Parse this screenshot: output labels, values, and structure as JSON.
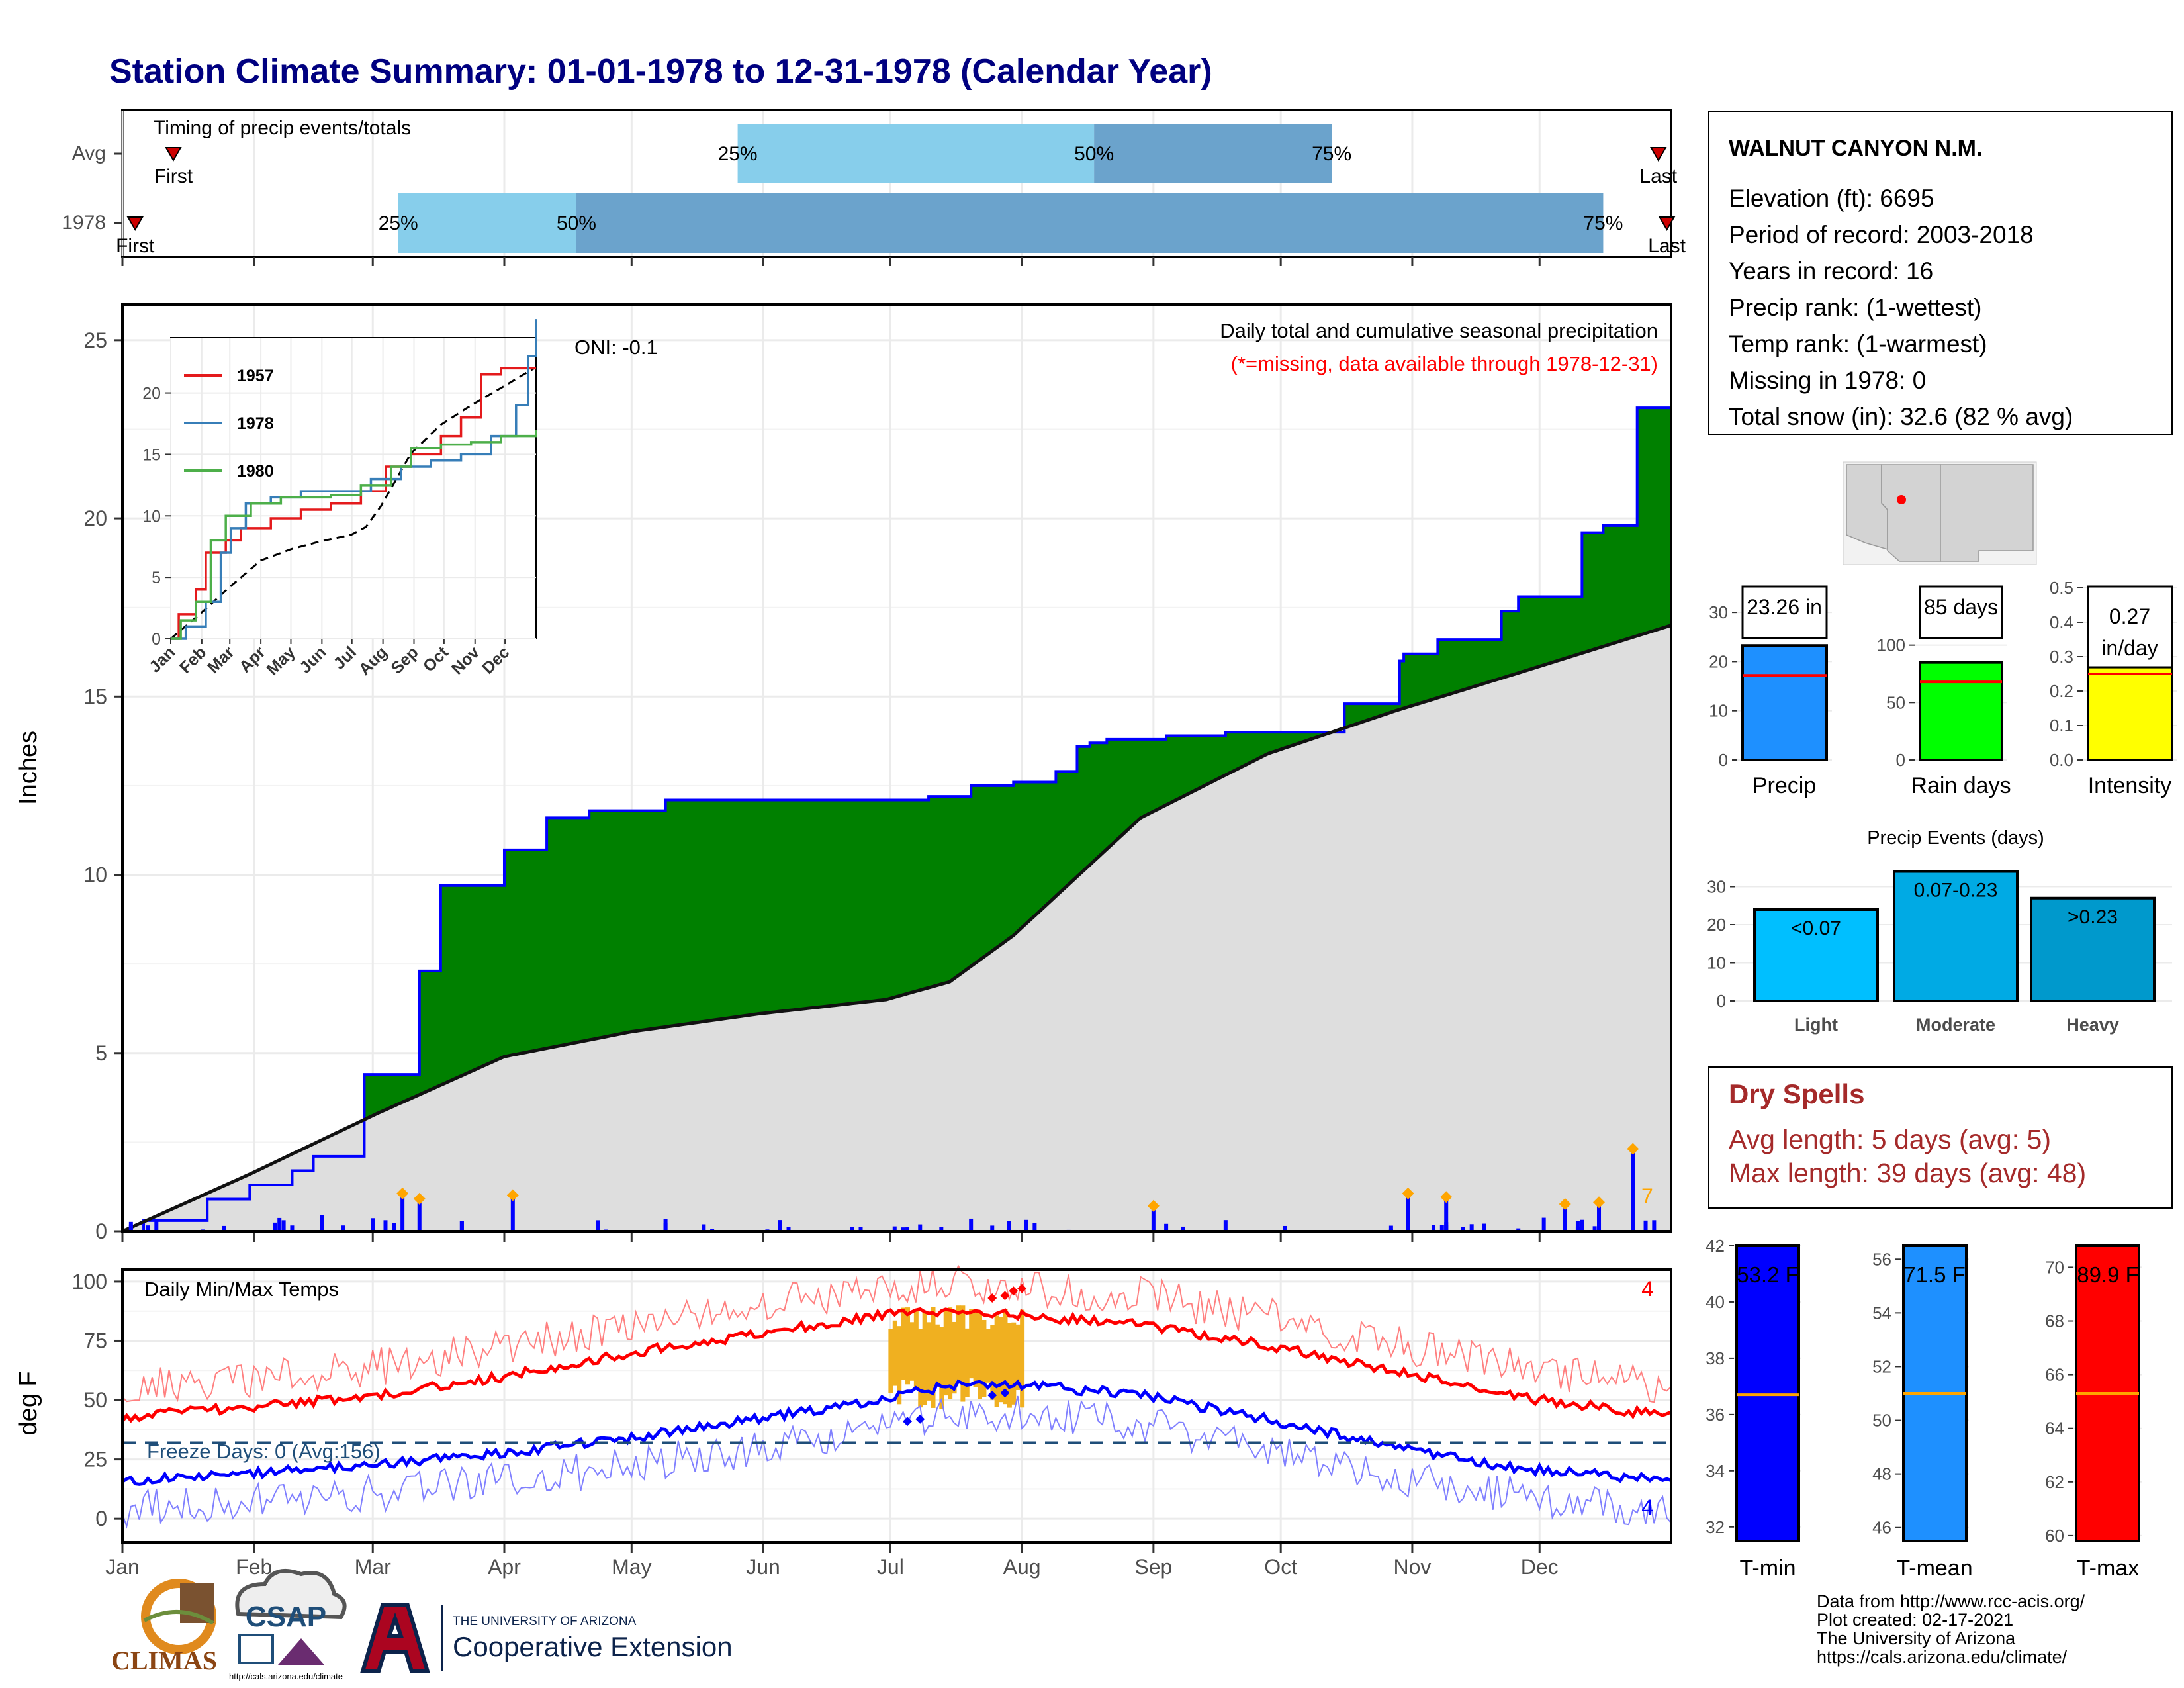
{
  "title": "Station Climate Summary: 01-01-1978 to 12-31-1978 (Calendar Year)",
  "colors": {
    "title": "#000080",
    "green_fill": "#008000",
    "gray_fill": "#DEDEDE",
    "blue_line": "#0000FF",
    "orange": "#FFA500",
    "q_light": "#87CEEB",
    "q_dark": "#6BA3CC",
    "precip_bar": "#1E90FF",
    "rain_days_bar": "#00FF00",
    "intensity_bar": "#FFFF00",
    "event_light": "#00BFFF",
    "event_moderate": "#00AAE4",
    "event_heavy": "#0099CC",
    "dry_spell": "#A52A2A",
    "tmin_bar": "#0000FF",
    "tmean_bar": "#1E90FF",
    "tmax_bar": "#FF0000",
    "warm_anomaly": "#F0B020"
  },
  "timing": {
    "title": "Timing of precip events/totals",
    "rows": [
      {
        "label": "Avg",
        "first_label": "First",
        "last_label": "Last",
        "first_doy": 12,
        "last_doy": 362,
        "q25": 145,
        "q50": 229,
        "q75": 285,
        "q25_label": "25%",
        "q50_label": "50%",
        "q75_label": "75%"
      },
      {
        "label": "1978",
        "first_label": "First",
        "last_label": "Last",
        "first_doy": 3,
        "last_doy": 364,
        "q25": 65,
        "q50": 107,
        "q75": 349,
        "q25_label": "25%",
        "q50_label": "50%",
        "q75_label": "75%"
      }
    ]
  },
  "precip_panel": {
    "ylabel": "Inches",
    "yticks": [
      "0",
      "5",
      "10",
      "15",
      "20",
      "25"
    ],
    "oni": "ONI: -0.1",
    "caption": "Daily total and cumulative seasonal precipitation",
    "missing_note": "(*=missing, data available through 1978-12-31)",
    "extreme_count": "7"
  },
  "inset": {
    "yticks": [
      "0",
      "5",
      "10",
      "15",
      "20"
    ],
    "months": [
      "Jan",
      "Feb",
      "Mar",
      "Apr",
      "May",
      "Jun",
      "Jul",
      "Aug",
      "Sep",
      "Oct",
      "Nov",
      "Dec"
    ],
    "legend": [
      {
        "name": "1957",
        "color": "#E41A1C"
      },
      {
        "name": "1978",
        "color": "#377EB8"
      },
      {
        "name": "1980",
        "color": "#4DAF4A"
      }
    ]
  },
  "temp_panel": {
    "ylabel": "deg F",
    "title": "Daily Min/Max Temps",
    "yticks": [
      "0",
      "25",
      "50",
      "75",
      "100"
    ],
    "freeze_label": "Freeze Days: 0 (Avg:156)",
    "record_high_count": "4",
    "record_low_count": "4"
  },
  "months": [
    "Jan",
    "Feb",
    "Mar",
    "Apr",
    "May",
    "Jun",
    "Jul",
    "Aug",
    "Sep",
    "Oct",
    "Nov",
    "Dec"
  ],
  "station": {
    "name": "WALNUT CANYON N.M.",
    "lines": [
      "Elevation (ft): 6695",
      "Period of record: 2003-2018",
      "Years in record: 16",
      "Precip rank:  (1-wettest)",
      "Temp rank:  (1-warmest)",
      "Missing in 1978: 0",
      "Total snow (in): 32.6 (82 % avg)"
    ]
  },
  "summary_bars": [
    {
      "label": "Precip",
      "value_label": "23.26 in",
      "value": 23.26,
      "avg": 17.2,
      "ymax": 35,
      "yticks": [
        "0",
        "10",
        "20",
        "30"
      ]
    },
    {
      "label": "Rain days",
      "value_label": "85 days",
      "value": 85,
      "avg": 68,
      "ymax": 150,
      "yticks": [
        "0",
        "50",
        "100"
      ]
    },
    {
      "label": "Intensity",
      "value_label": "0.27",
      "value_label2": "in/day",
      "value": 0.27,
      "avg": 0.25,
      "ymax": 0.5,
      "yticks": [
        "0.0",
        "0.1",
        "0.2",
        "0.3",
        "0.4",
        "0.5"
      ]
    }
  ],
  "precip_events": {
    "title": "Precip Events (days)",
    "yticks": [
      "0",
      "10",
      "20",
      "30"
    ],
    "bars": [
      {
        "label": "Light",
        "range": "<0.07",
        "value": 24
      },
      {
        "label": "Moderate",
        "range": "0.07-0.23",
        "value": 34
      },
      {
        "label": "Heavy",
        "range": ">0.23",
        "value": 27
      }
    ]
  },
  "dry_spells": {
    "title": "Dry Spells",
    "avg_line": "Avg length: 5 days (avg: 5)",
    "max_line": "Max length: 39 days (avg: 48)"
  },
  "temp_bars": [
    {
      "label": "T-min",
      "value_label": "53.2 F",
      "value": 53.2,
      "avg": 36.7,
      "ymin": 31.5,
      "ymax": 42,
      "yticks": [
        "32",
        "34",
        "36",
        "38",
        "40",
        "42"
      ]
    },
    {
      "label": "T-mean",
      "value_label": "71.5 F",
      "value": 71.5,
      "avg": 51.0,
      "ymin": 45.5,
      "ymax": 56.5,
      "yticks": [
        "46",
        "48",
        "50",
        "52",
        "54",
        "56"
      ]
    },
    {
      "label": "T-max",
      "value_label": "89.9 F",
      "value": 89.9,
      "avg": 65.3,
      "ymin": 59.8,
      "ymax": 70.8,
      "yticks": [
        "60",
        "62",
        "64",
        "66",
        "68",
        "70"
      ]
    }
  ],
  "footer": [
    "Data from http://www.rcc-acis.org/",
    "Plot created: 02-17-2021",
    "The University of Arizona",
    "https://cals.arizona.edu/climate/"
  ],
  "logos": {
    "climas": "CLIMAS",
    "csap": "CSAP",
    "csap_url": "http://cals.arizona.edu/climate",
    "ua_small": "THE UNIVERSITY OF ARIZONA",
    "ua_big": "Cooperative Extension"
  },
  "chart_data": {
    "type": "area",
    "series": [
      {
        "name": "1978",
        "x": [
          0,
          5,
          20,
          30,
          40,
          45,
          57,
          70,
          75,
          90,
          100,
          110,
          128,
          140,
          175,
          190,
          200,
          210,
          220,
          225,
          228,
          232,
          237,
          243,
          246,
          253,
          260,
          288,
          301,
          302,
          310,
          325,
          329,
          344,
          349,
          357,
          365
        ],
        "y": [
          0,
          0.3,
          0.9,
          1.3,
          1.7,
          2.1,
          4.4,
          7.3,
          9.7,
          10.7,
          11.6,
          11.8,
          12.1,
          12.1,
          12.1,
          12.2,
          12.5,
          12.6,
          12.9,
          13.6,
          13.7,
          13.8,
          13.8,
          13.8,
          13.9,
          13.9,
          14.0,
          14.8,
          16.0,
          16.2,
          16.6,
          17.4,
          17.8,
          19.6,
          19.8,
          23.1,
          23.1
        ]
      },
      {
        "name": "Average",
        "x": [
          0,
          30,
          60,
          90,
          120,
          150,
          180,
          195,
          210,
          240,
          270,
          300,
          330,
          365
        ],
        "y": [
          0,
          1.6,
          3.3,
          4.9,
          5.6,
          6.1,
          6.5,
          7.0,
          8.3,
          11.6,
          13.4,
          14.6,
          15.7,
          17.0
        ]
      }
    ],
    "daily_precip": [
      [
        8,
        0.35
      ],
      [
        24,
        0.15
      ],
      [
        47,
        0.45
      ],
      [
        66,
        0.95
      ],
      [
        70,
        0.8
      ],
      [
        92,
        0.9
      ],
      [
        152,
        0.05
      ],
      [
        243,
        0.6
      ],
      [
        303,
        0.95
      ],
      [
        312,
        0.85
      ],
      [
        340,
        0.65
      ],
      [
        348,
        0.7
      ],
      [
        356,
        2.2
      ]
    ],
    "temperature": {
      "tmax_avg": [
        [
          0,
          43
        ],
        [
          30,
          47
        ],
        [
          60,
          52
        ],
        [
          90,
          60
        ],
        [
          120,
          70
        ],
        [
          150,
          78
        ],
        [
          180,
          86
        ],
        [
          195,
          88
        ],
        [
          210,
          86
        ],
        [
          240,
          82
        ],
        [
          270,
          73
        ],
        [
          300,
          62
        ],
        [
          330,
          51
        ],
        [
          365,
          43
        ]
      ],
      "tmin_avg": [
        [
          0,
          16
        ],
        [
          30,
          19
        ],
        [
          60,
          23
        ],
        [
          90,
          28
        ],
        [
          120,
          34
        ],
        [
          150,
          42
        ],
        [
          180,
          51
        ],
        [
          195,
          56
        ],
        [
          210,
          57
        ],
        [
          240,
          52
        ],
        [
          270,
          42
        ],
        [
          300,
          30
        ],
        [
          330,
          21
        ],
        [
          365,
          16
        ]
      ],
      "freeze_threshold": 32
    },
    "xlabel": "",
    "ylabel": "Inches",
    "ylim": [
      0,
      25
    ],
    "xlim": [
      0,
      365
    ]
  }
}
